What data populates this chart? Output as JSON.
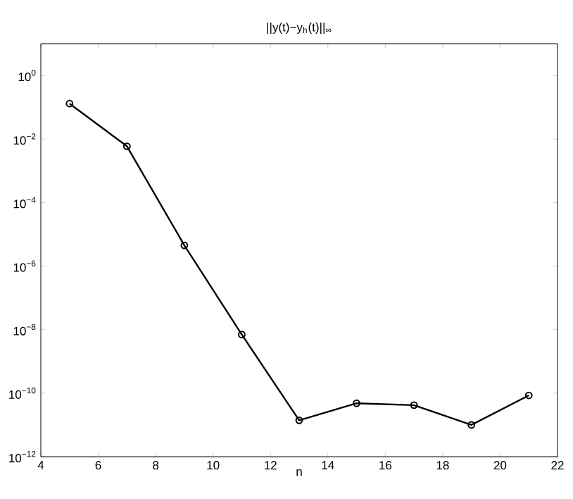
{
  "chart_data": {
    "type": "line",
    "title": "||y(t)−y$_{h}$(t)||$_{∞}$",
    "xlabel": "n",
    "x": [
      5,
      7,
      9,
      11,
      13,
      15,
      17,
      19,
      21
    ],
    "series": [
      {
        "color": "#000000",
        "values": [
          0.13,
          0.0059,
          4.5e-06,
          7e-09,
          1.4e-11,
          4.8e-11,
          4.2e-11,
          1e-11,
          8.5e-11
        ]
      }
    ],
    "log": "y",
    "marker": "circle",
    "line_style": "solid",
    "xlim": [
      4,
      22
    ],
    "xticks": [
      4,
      6,
      8,
      10,
      12,
      14,
      16,
      18,
      20,
      22
    ],
    "ylim": [
      1e-12,
      10
    ],
    "yticks": [
      {
        "value": 1e-12,
        "label": "10$^{−12}$"
      },
      {
        "value": 1e-10,
        "label": "10$^{−10}$"
      },
      {
        "value": 1e-08,
        "label": "10$^{−8}$"
      },
      {
        "value": 1e-06,
        "label": "10$^{−6}$"
      },
      {
        "value": 0.0001,
        "label": "10$^{−4}$"
      },
      {
        "value": 0.01,
        "label": "10$^{−2}$"
      },
      {
        "value": 1,
        "label": "10$^{0}$"
      }
    ]
  }
}
